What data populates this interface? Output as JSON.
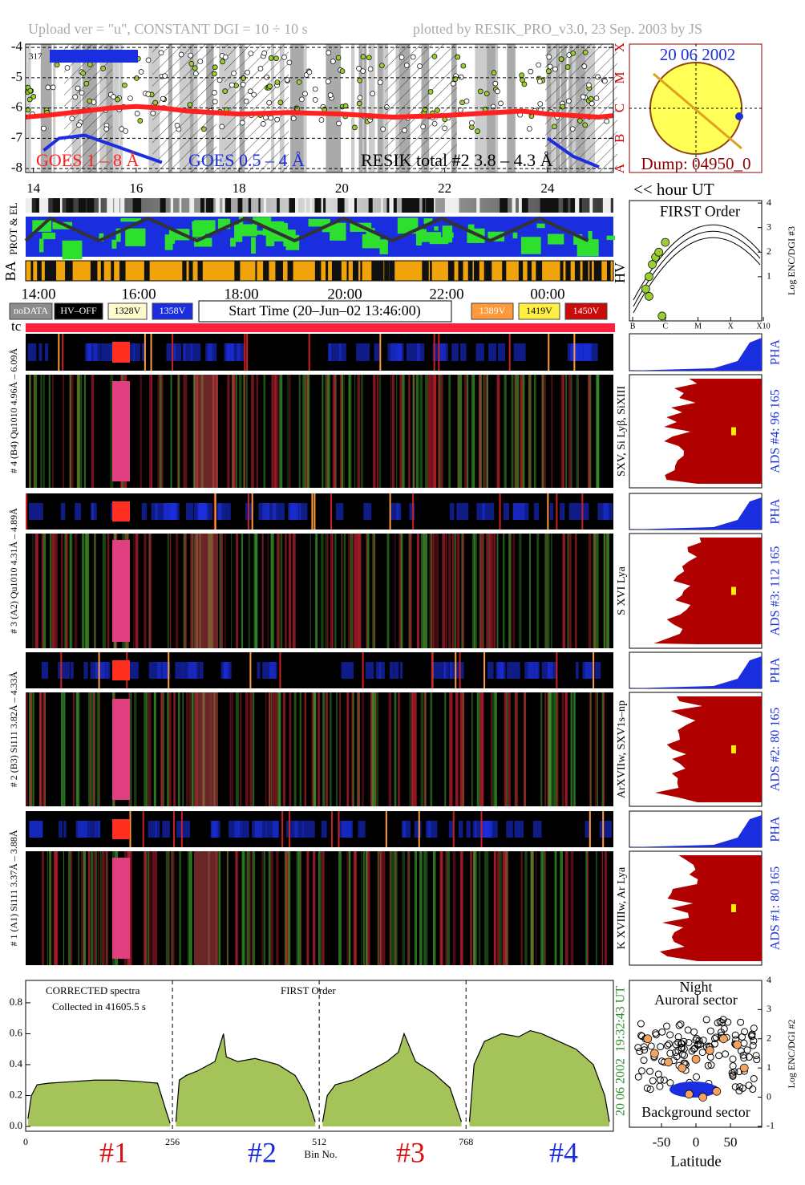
{
  "header": {
    "left": "Upload ver = \"u\", CONSTANT  DGI =  10 ÷  10 s",
    "right": "plotted by RESIK_PRO_v3.0, 23 Sep. 2003 by JS"
  },
  "chart_data": [
    {
      "type": "line",
      "annotations": [
        "GOES 1 – 8 Å",
        "GOES 0.5 – 4 Å",
        "RESIK total #2  3.8 – 4.3 Å",
        "317"
      ],
      "x": [
        13.85,
        14.2,
        14.5,
        15,
        15.5,
        16,
        16.5,
        17,
        18,
        19,
        20,
        21,
        22,
        23,
        23.5,
        24,
        24.5,
        25,
        25.28
      ],
      "series": [
        {
          "name": "GOES 1 – 8 Å",
          "color": "#ff2020",
          "values": [
            -6.3,
            -6.25,
            -6.2,
            -6.1,
            -6.0,
            -5.95,
            -6.0,
            -6.1,
            -6.2,
            -6.15,
            -6.2,
            -6.3,
            -6.25,
            -6.15,
            -6.1,
            -6.2,
            -6.25,
            -6.3,
            -6.25
          ]
        },
        {
          "name": "GOES 0.5 – 4 Å",
          "color": "#1a2ee0",
          "values": [
            null,
            -7.4,
            -7.0,
            -6.9,
            -7.2,
            -7.5,
            -7.8,
            null,
            null,
            null,
            null,
            null,
            null,
            null,
            null,
            -7.0,
            -7.6,
            -7.95,
            null
          ]
        }
      ],
      "xlim": [
        13.85,
        25.28
      ],
      "xticks": [
        14,
        16,
        18,
        20,
        22,
        24
      ],
      "ylim": [
        -8.13,
        -3.89
      ],
      "yticks": [
        -8,
        -7,
        -6,
        -5,
        -4
      ],
      "y2lim": [
        -8.13,
        -3.89
      ],
      "y2ticks": [
        {
          "value": -8,
          "label": "A"
        },
        {
          "value": -7,
          "label": "B"
        },
        {
          "value": -6,
          "label": "C"
        },
        {
          "value": -5,
          "label": "M"
        },
        {
          "value": -4,
          "label": "X"
        }
      ],
      "grid": true
    },
    {
      "type": "scatter",
      "title": "FIRST Order",
      "ylabel": "Log ENC/DGI #3",
      "x": [
        -6.6,
        -6.5,
        -6.4,
        -6.3,
        -6.2,
        -6.0,
        -6.5,
        -6.1
      ],
      "values": [
        0.5,
        1.0,
        1.5,
        1.8,
        2.0,
        2.4,
        0.2,
        -0.6
      ],
      "color": "#9acd32",
      "xlim": [
        -7.1,
        -3.05
      ],
      "xticks": [
        {
          "value": -7,
          "label": "B"
        },
        {
          "value": -6,
          "label": "C"
        },
        {
          "value": -5,
          "label": "M"
        },
        {
          "value": -4,
          "label": "X"
        },
        {
          "value": -3,
          "label": "X10"
        }
      ],
      "ylim": [
        -0.8,
        4.1
      ],
      "yticks": [
        1,
        2,
        3,
        4
      ]
    },
    {
      "type": "area",
      "annotations": [
        "CORRECTED spectra",
        "Collected in 41605.5 s",
        "FIRST Order"
      ],
      "xlabel": "Bin No.",
      "x": [
        4,
        10,
        20,
        40,
        80,
        120,
        160,
        200,
        230,
        245,
        252,
        256,
        262,
        268,
        280,
        300,
        330,
        345,
        350,
        370,
        400,
        440,
        470,
        490,
        505,
        512,
        518,
        526,
        540,
        570,
        600,
        630,
        650,
        660,
        680,
        710,
        740,
        760,
        768,
        774,
        782,
        800,
        830,
        860,
        880,
        900,
        930,
        960,
        990,
        1010,
        1018
      ],
      "values": [
        0.05,
        0.2,
        0.27,
        0.28,
        0.29,
        0.3,
        0.3,
        0.29,
        0.28,
        0.1,
        0.02,
        null,
        0.03,
        0.3,
        0.33,
        0.36,
        0.42,
        0.6,
        0.45,
        0.42,
        0.44,
        0.4,
        0.33,
        0.2,
        0.03,
        null,
        0.03,
        0.2,
        0.27,
        0.3,
        0.36,
        0.42,
        0.48,
        0.6,
        0.42,
        0.35,
        0.25,
        0.03,
        null,
        0.03,
        0.4,
        0.55,
        0.6,
        0.58,
        0.62,
        0.6,
        0.55,
        0.5,
        0.4,
        0.2,
        0.03
      ],
      "color": "#a4c45a",
      "line_color": "#000000",
      "xlim": [
        0,
        1025
      ],
      "xticks": [
        0,
        256,
        512,
        768
      ],
      "ylim": [
        -0.031,
        0.945
      ],
      "yticks": [
        {
          "value": 0,
          "label": "0.0"
        },
        0.2,
        0.4,
        0.6,
        0.8
      ],
      "section_labels": [
        {
          "label": "#1",
          "color": "#dd1111"
        },
        {
          "label": "#2",
          "color": "#1a2ee0"
        },
        {
          "label": "#3",
          "color": "#dd1111"
        },
        {
          "label": "#4",
          "color": "#1a2ee0"
        }
      ]
    },
    {
      "type": "scatter",
      "annotations": [
        "Night",
        "Auroral sector",
        "Background sector"
      ],
      "xlabel": "Latitude",
      "ylabel": "Log ENC/DGI #2",
      "x": [
        -70,
        -60,
        -40,
        -20,
        0,
        20,
        40,
        60,
        70,
        -10,
        10,
        30
      ],
      "values": [
        2.0,
        1.5,
        1.2,
        1.0,
        1.3,
        1.6,
        2.0,
        1.8,
        1.0,
        0.1,
        0.0,
        0.2
      ],
      "color": "#f4a460",
      "xlim": [
        -96.5,
        95.3
      ],
      "xticks": [
        -50,
        0,
        50
      ],
      "ylim": [
        -1.03,
        4
      ],
      "yticks": [
        -1,
        0,
        1,
        2,
        3,
        4
      ]
    }
  ],
  "sun_panel": {
    "date": "20 06 2002",
    "dump": "Dump: 04950_0"
  },
  "hour_label": "<< hour UT",
  "strip_labels": {
    "prot": "PROT & EL",
    "ba": "BA",
    "hv": "HV"
  },
  "time_labels": [
    "14:00",
    "16:00",
    "18:00",
    "20:00",
    "22:00",
    "00:00"
  ],
  "legend": {
    "items": [
      {
        "label": "noDATA",
        "color": "#8c8c8c",
        "text_color": "#ffffff"
      },
      {
        "label": "HV–OFF",
        "color": "#000000",
        "text_color": "#ffffff"
      },
      {
        "label": "1328V",
        "color": "#fffacd",
        "text_color": "#000000"
      },
      {
        "label": "1358V",
        "color": "#1a2ee0",
        "text_color": "#ffffff"
      },
      {
        "label": "1389V",
        "color": "#ff9a3c",
        "text_color": "#ffffff"
      },
      {
        "label": "1419V",
        "color": "#ffee44",
        "text_color": "#000000"
      },
      {
        "label": "1450V",
        "color": "#cc0a0a",
        "text_color": "#ffffff"
      }
    ],
    "start_time": "Start Time (20–Jun–02 13:46:00)"
  },
  "tc": "tc",
  "detectors": [
    {
      "label": "# 4 (B4) Qu1010 4.96Å – 6.09Å",
      "lines": "SXV, Si Lyβ, SiXIII",
      "ads": "ADS #4:   96 165",
      "pha": "PHA"
    },
    {
      "label": "# 3 (A2) Qu1010  4.31Å – 4.89Å",
      "lines": "S XVI Lya",
      "ads": "ADS #3:  112 165",
      "pha": "PHA"
    },
    {
      "label": "# 2 (B3) Si111  3.82Å – 4.33Å",
      "lines": "ArXVIIw, SXV1s–np",
      "ads": "ADS #2:   80 165",
      "pha": "PHA"
    },
    {
      "label": "# 1 (A1) Si111  3.37Å – 3.88Å",
      "lines": "K XVIIIw, Ar Lya",
      "ads": "ADS #1:   80 165",
      "pha": "PHA"
    }
  ],
  "stamp": {
    "time": "19:32:43 UT",
    "date": "20 06 2002"
  }
}
